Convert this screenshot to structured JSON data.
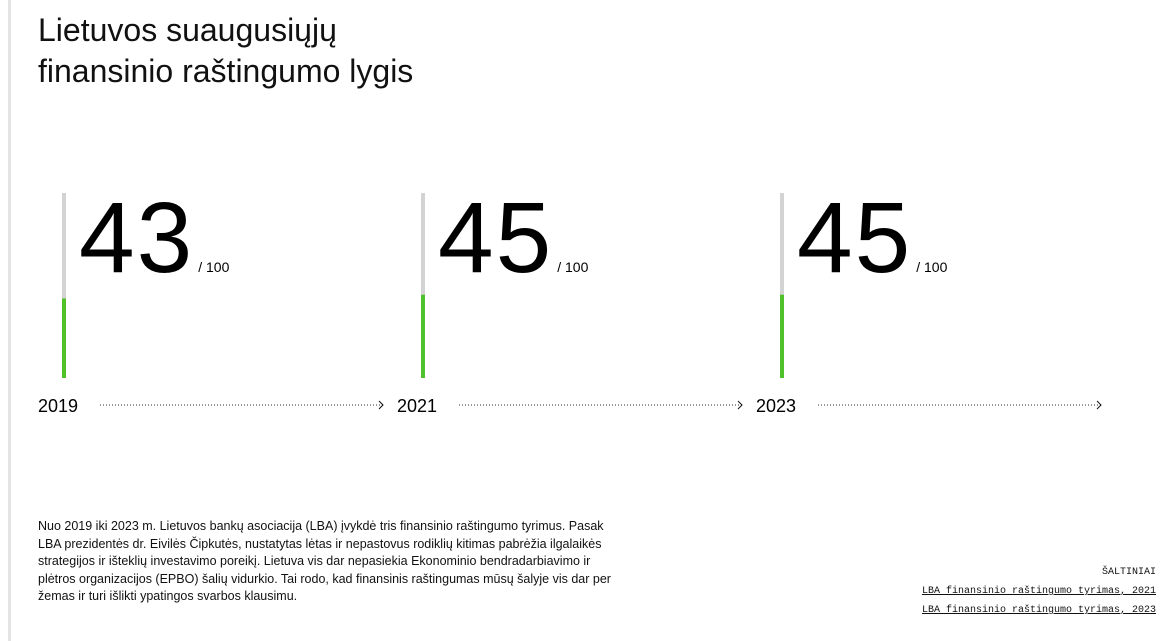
{
  "chart_data": {
    "type": "bar",
    "title": "Lietuvos suaugusiųjų finansinio raštingumo lygis",
    "categories": [
      "2019",
      "2021",
      "2023"
    ],
    "values": [
      43,
      45,
      45
    ],
    "ylim": [
      0,
      100
    ],
    "max_label": "/ 100",
    "color": "#4ec12b",
    "track_color": "#d3d3d3"
  },
  "description": "Nuo 2019 iki 2023 m. Lietuvos bankų asociacija (LBA) įvykdė tris finansinio raštingumo tyrimus. Pasak LBA prezidentės dr. Eivilės Čipkutės, nustatytas lėtas ir nepastovus rodiklių kitimas pabrėžia ilgalaikės strategijos ir išteklių investavimo poreikį. Lietuva vis dar nepasiekia Ekonominio bendradarbiavimo ir plėtros organizacijos (EPBO) šalių vidurkio. Tai rodo, kad finansinis raštingumas mūsų šalyje vis dar per žemas ir turi išlikti ypatingos svarbos klausimu.",
  "sources": {
    "heading": "ŠALTINIAI",
    "links": [
      "LBA finansinio raštingumo tyrimas, 2021",
      "LBA finansinio raštingumo tyrimas,  2023"
    ]
  }
}
